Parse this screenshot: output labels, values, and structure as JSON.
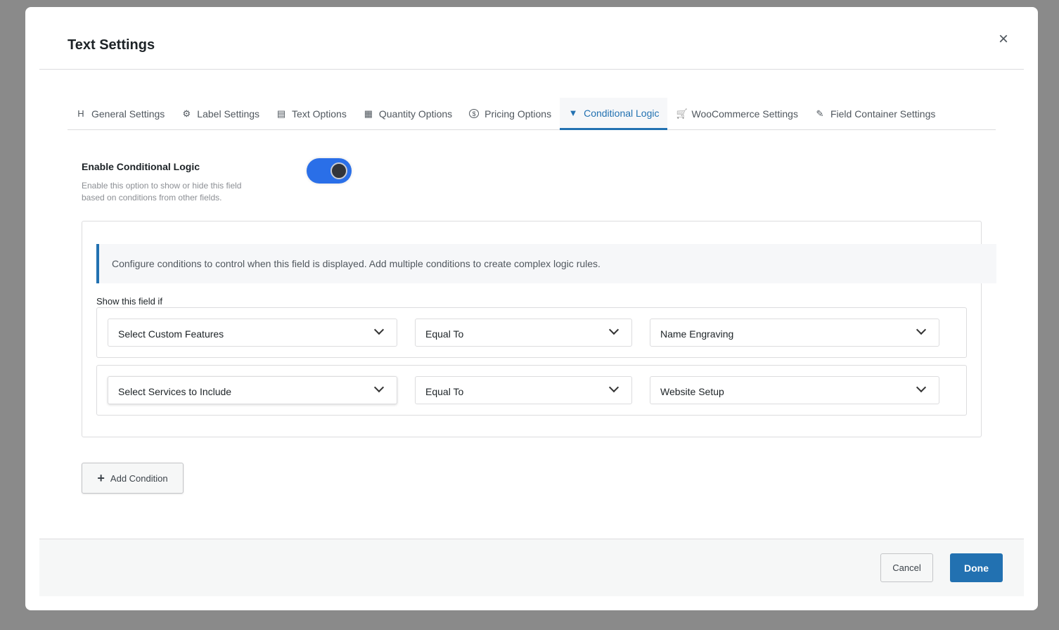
{
  "modal": {
    "title": "Text Settings",
    "close_icon": "×"
  },
  "tabs": [
    {
      "icon": "H",
      "label": "General Settings"
    },
    {
      "icon": "⚙",
      "label": "Label Settings"
    },
    {
      "icon": "▤",
      "label": "Text Options"
    },
    {
      "icon": "▦",
      "label": "Quantity Options"
    },
    {
      "icon": "$",
      "label": "Pricing Options"
    },
    {
      "icon": "▼",
      "label": "Conditional Logic",
      "active": true
    },
    {
      "icon": "🛒",
      "label": "WooCommerce Settings"
    },
    {
      "icon": "✎",
      "label": "Field Container Settings"
    }
  ],
  "enable": {
    "label": "Enable Conditional Logic",
    "description": "Enable this option to show or hide this field based on conditions from other fields.",
    "on": true
  },
  "notice": "Configure conditions to control when this field is displayed. Add multiple conditions to create complex logic rules.",
  "show_if": "Show this field if",
  "conditions": [
    {
      "field": "Select Custom Features",
      "operator": "Equal To",
      "value": "Name Engraving"
    },
    {
      "field": "Select Services to Include",
      "operator": "Equal To",
      "value": "Website Setup"
    }
  ],
  "add_condition": {
    "icon": "+",
    "label": "Add Condition"
  },
  "footer": {
    "cancel": "Cancel",
    "done": "Done"
  },
  "colors": {
    "accent": "#2271b1",
    "toggle": "#2a6fe8"
  }
}
